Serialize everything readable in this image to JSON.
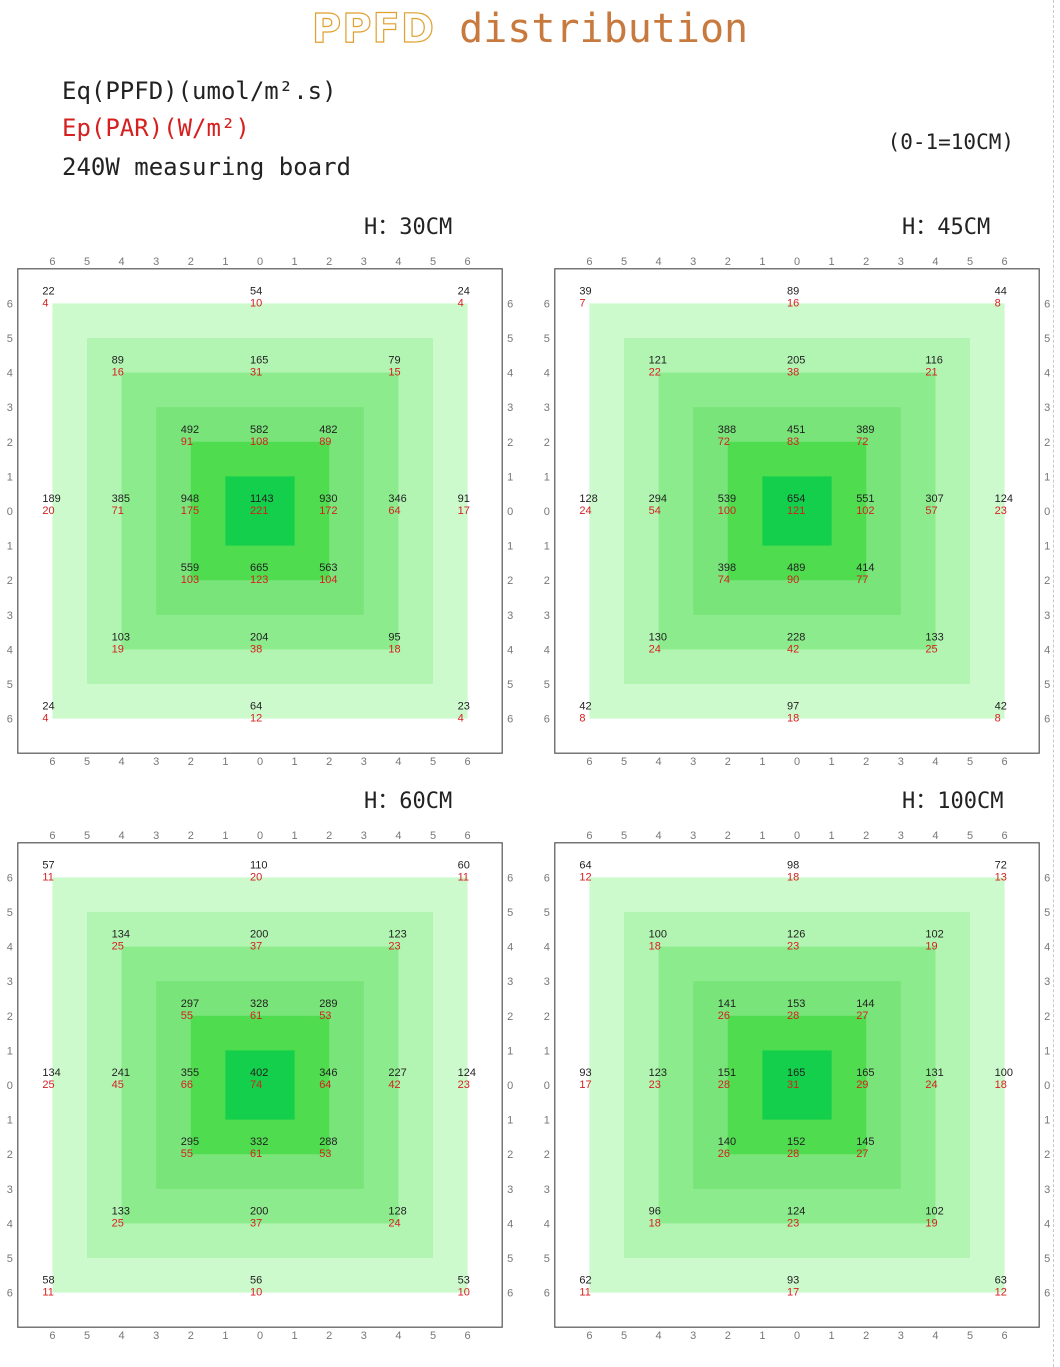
{
  "title": {
    "part1": "PPFD",
    "part2": " distribution"
  },
  "legend": {
    "ppfd": "Eq(PPFD)(umol/m².s)",
    "par": "Ep(PAR)(W/m²)",
    "board": "240W measuring board"
  },
  "scale_note": "(0-1=10CM)",
  "colors": {
    "ppfd_text": "#222222",
    "par_text": "#d62020",
    "zones": [
      "#cdfacd",
      "#b2f5b2",
      "#8ceb8c",
      "#79e479",
      "#4fdc4f",
      "#13cf4b"
    ],
    "frame": "#555555",
    "ticks": "#777777"
  },
  "chart_data": [
    {
      "type": "heatmap",
      "title": "H：30CM",
      "axis_ticks": [
        "6",
        "5",
        "4",
        "3",
        "2",
        "1",
        "0",
        "1",
        "2",
        "3",
        "4",
        "5",
        "6"
      ],
      "xlim": [
        -6,
        6
      ],
      "ylim": [
        -6,
        6
      ],
      "points": [
        {
          "x": -6,
          "y": 6,
          "ppfd": 22,
          "par": 4
        },
        {
          "x": 0,
          "y": 6,
          "ppfd": 54,
          "par": 10
        },
        {
          "x": 6,
          "y": 6,
          "ppfd": 24,
          "par": 4
        },
        {
          "x": -4,
          "y": 4,
          "ppfd": 89,
          "par": 16
        },
        {
          "x": 0,
          "y": 4,
          "ppfd": 165,
          "par": 31
        },
        {
          "x": 4,
          "y": 4,
          "ppfd": 79,
          "par": 15
        },
        {
          "x": -2,
          "y": 2,
          "ppfd": 492,
          "par": 91
        },
        {
          "x": 0,
          "y": 2,
          "ppfd": 582,
          "par": 108
        },
        {
          "x": 2,
          "y": 2,
          "ppfd": 482,
          "par": 89
        },
        {
          "x": -6,
          "y": 0,
          "ppfd": 189,
          "par": 20
        },
        {
          "x": -4,
          "y": 0,
          "ppfd": 385,
          "par": 71
        },
        {
          "x": -2,
          "y": 0,
          "ppfd": 948,
          "par": 175
        },
        {
          "x": 0,
          "y": 0,
          "ppfd": 1143,
          "par": 221
        },
        {
          "x": 2,
          "y": 0,
          "ppfd": 930,
          "par": 172
        },
        {
          "x": 4,
          "y": 0,
          "ppfd": 346,
          "par": 64
        },
        {
          "x": 6,
          "y": 0,
          "ppfd": 91,
          "par": 17
        },
        {
          "x": -2,
          "y": -2,
          "ppfd": 559,
          "par": 103
        },
        {
          "x": 0,
          "y": -2,
          "ppfd": 665,
          "par": 123
        },
        {
          "x": 2,
          "y": -2,
          "ppfd": 563,
          "par": 104
        },
        {
          "x": -4,
          "y": -4,
          "ppfd": 103,
          "par": 19
        },
        {
          "x": 0,
          "y": -4,
          "ppfd": 204,
          "par": 38
        },
        {
          "x": 4,
          "y": -4,
          "ppfd": 95,
          "par": 18
        },
        {
          "x": -6,
          "y": -6,
          "ppfd": 24,
          "par": 4
        },
        {
          "x": 0,
          "y": -6,
          "ppfd": 64,
          "par": 12
        },
        {
          "x": 6,
          "y": -6,
          "ppfd": 23,
          "par": 4
        }
      ]
    },
    {
      "type": "heatmap",
      "title": "H：45CM",
      "axis_ticks": [
        "6",
        "5",
        "4",
        "3",
        "2",
        "1",
        "0",
        "1",
        "2",
        "3",
        "4",
        "5",
        "6"
      ],
      "xlim": [
        -6,
        6
      ],
      "ylim": [
        -6,
        6
      ],
      "points": [
        {
          "x": -6,
          "y": 6,
          "ppfd": 39,
          "par": 7
        },
        {
          "x": 0,
          "y": 6,
          "ppfd": 89,
          "par": 16
        },
        {
          "x": 6,
          "y": 6,
          "ppfd": 44,
          "par": 8
        },
        {
          "x": -4,
          "y": 4,
          "ppfd": 121,
          "par": 22
        },
        {
          "x": 0,
          "y": 4,
          "ppfd": 205,
          "par": 38
        },
        {
          "x": 4,
          "y": 4,
          "ppfd": 116,
          "par": 21
        },
        {
          "x": -2,
          "y": 2,
          "ppfd": 388,
          "par": 72
        },
        {
          "x": 0,
          "y": 2,
          "ppfd": 451,
          "par": 83
        },
        {
          "x": 2,
          "y": 2,
          "ppfd": 389,
          "par": 72
        },
        {
          "x": -6,
          "y": 0,
          "ppfd": 128,
          "par": 24
        },
        {
          "x": -4,
          "y": 0,
          "ppfd": 294,
          "par": 54
        },
        {
          "x": -2,
          "y": 0,
          "ppfd": 539,
          "par": 100
        },
        {
          "x": 0,
          "y": 0,
          "ppfd": 654,
          "par": 121
        },
        {
          "x": 2,
          "y": 0,
          "ppfd": 551,
          "par": 102
        },
        {
          "x": 4,
          "y": 0,
          "ppfd": 307,
          "par": 57
        },
        {
          "x": 6,
          "y": 0,
          "ppfd": 124,
          "par": 23
        },
        {
          "x": -2,
          "y": -2,
          "ppfd": 398,
          "par": 74
        },
        {
          "x": 0,
          "y": -2,
          "ppfd": 489,
          "par": 90
        },
        {
          "x": 2,
          "y": -2,
          "ppfd": 414,
          "par": 77
        },
        {
          "x": -4,
          "y": -4,
          "ppfd": 130,
          "par": 24
        },
        {
          "x": 0,
          "y": -4,
          "ppfd": 228,
          "par": 42
        },
        {
          "x": 4,
          "y": -4,
          "ppfd": 133,
          "par": 25
        },
        {
          "x": -6,
          "y": -6,
          "ppfd": 42,
          "par": 8
        },
        {
          "x": 0,
          "y": -6,
          "ppfd": 97,
          "par": 18
        },
        {
          "x": 6,
          "y": -6,
          "ppfd": 42,
          "par": 8
        }
      ]
    },
    {
      "type": "heatmap",
      "title": "H：60CM",
      "axis_ticks": [
        "6",
        "5",
        "4",
        "3",
        "2",
        "1",
        "0",
        "1",
        "2",
        "3",
        "4",
        "5",
        "6"
      ],
      "xlim": [
        -6,
        6
      ],
      "ylim": [
        -6,
        6
      ],
      "points": [
        {
          "x": -6,
          "y": 6,
          "ppfd": 57,
          "par": 11
        },
        {
          "x": 0,
          "y": 6,
          "ppfd": 110,
          "par": 20
        },
        {
          "x": 6,
          "y": 6,
          "ppfd": 60,
          "par": 11
        },
        {
          "x": -4,
          "y": 4,
          "ppfd": 134,
          "par": 25
        },
        {
          "x": 0,
          "y": 4,
          "ppfd": 200,
          "par": 37
        },
        {
          "x": 4,
          "y": 4,
          "ppfd": 123,
          "par": 23
        },
        {
          "x": -2,
          "y": 2,
          "ppfd": 297,
          "par": 55
        },
        {
          "x": 0,
          "y": 2,
          "ppfd": 328,
          "par": 61
        },
        {
          "x": 2,
          "y": 2,
          "ppfd": 289,
          "par": 53
        },
        {
          "x": -6,
          "y": 0,
          "ppfd": 134,
          "par": 25
        },
        {
          "x": -4,
          "y": 0,
          "ppfd": 241,
          "par": 45
        },
        {
          "x": -2,
          "y": 0,
          "ppfd": 355,
          "par": 66
        },
        {
          "x": 0,
          "y": 0,
          "ppfd": 402,
          "par": 74
        },
        {
          "x": 2,
          "y": 0,
          "ppfd": 346,
          "par": 64
        },
        {
          "x": 4,
          "y": 0,
          "ppfd": 227,
          "par": 42
        },
        {
          "x": 6,
          "y": 0,
          "ppfd": 124,
          "par": 23
        },
        {
          "x": -2,
          "y": -2,
          "ppfd": 295,
          "par": 55
        },
        {
          "x": 0,
          "y": -2,
          "ppfd": 332,
          "par": 61
        },
        {
          "x": 2,
          "y": -2,
          "ppfd": 288,
          "par": 53
        },
        {
          "x": -4,
          "y": -4,
          "ppfd": 133,
          "par": 25
        },
        {
          "x": 0,
          "y": -4,
          "ppfd": 200,
          "par": 37
        },
        {
          "x": 4,
          "y": -4,
          "ppfd": 128,
          "par": 24
        },
        {
          "x": -6,
          "y": -6,
          "ppfd": 58,
          "par": 11
        },
        {
          "x": 0,
          "y": -6,
          "ppfd": 56,
          "par": 10
        },
        {
          "x": 6,
          "y": -6,
          "ppfd": 53,
          "par": 10
        }
      ]
    },
    {
      "type": "heatmap",
      "title": "H：100CM",
      "axis_ticks": [
        "6",
        "5",
        "4",
        "3",
        "2",
        "1",
        "0",
        "1",
        "2",
        "3",
        "4",
        "5",
        "6"
      ],
      "xlim": [
        -6,
        6
      ],
      "ylim": [
        -6,
        6
      ],
      "points": [
        {
          "x": -6,
          "y": 6,
          "ppfd": 64,
          "par": 12
        },
        {
          "x": 0,
          "y": 6,
          "ppfd": 98,
          "par": 18
        },
        {
          "x": 6,
          "y": 6,
          "ppfd": 72,
          "par": 13
        },
        {
          "x": -4,
          "y": 4,
          "ppfd": 100,
          "par": 18
        },
        {
          "x": 0,
          "y": 4,
          "ppfd": 126,
          "par": 23
        },
        {
          "x": 4,
          "y": 4,
          "ppfd": 102,
          "par": 19
        },
        {
          "x": -2,
          "y": 2,
          "ppfd": 141,
          "par": 26
        },
        {
          "x": 0,
          "y": 2,
          "ppfd": 153,
          "par": 28
        },
        {
          "x": 2,
          "y": 2,
          "ppfd": 144,
          "par": 27
        },
        {
          "x": -6,
          "y": 0,
          "ppfd": 93,
          "par": 17
        },
        {
          "x": -4,
          "y": 0,
          "ppfd": 123,
          "par": 23
        },
        {
          "x": -2,
          "y": 0,
          "ppfd": 151,
          "par": 28
        },
        {
          "x": 0,
          "y": 0,
          "ppfd": 165,
          "par": 31
        },
        {
          "x": 2,
          "y": 0,
          "ppfd": 165,
          "par": 29
        },
        {
          "x": 4,
          "y": 0,
          "ppfd": 131,
          "par": 24
        },
        {
          "x": 6,
          "y": 0,
          "ppfd": 100,
          "par": 18
        },
        {
          "x": -2,
          "y": -2,
          "ppfd": 140,
          "par": 26
        },
        {
          "x": 0,
          "y": -2,
          "ppfd": 152,
          "par": 28
        },
        {
          "x": 2,
          "y": -2,
          "ppfd": 145,
          "par": 27
        },
        {
          "x": -4,
          "y": -4,
          "ppfd": 96,
          "par": 18
        },
        {
          "x": 0,
          "y": -4,
          "ppfd": 124,
          "par": 23
        },
        {
          "x": 4,
          "y": -4,
          "ppfd": 102,
          "par": 19
        },
        {
          "x": -6,
          "y": -6,
          "ppfd": 62,
          "par": 11
        },
        {
          "x": 0,
          "y": -6,
          "ppfd": 93,
          "par": 17
        },
        {
          "x": 6,
          "y": -6,
          "ppfd": 63,
          "par": 12
        }
      ]
    }
  ]
}
